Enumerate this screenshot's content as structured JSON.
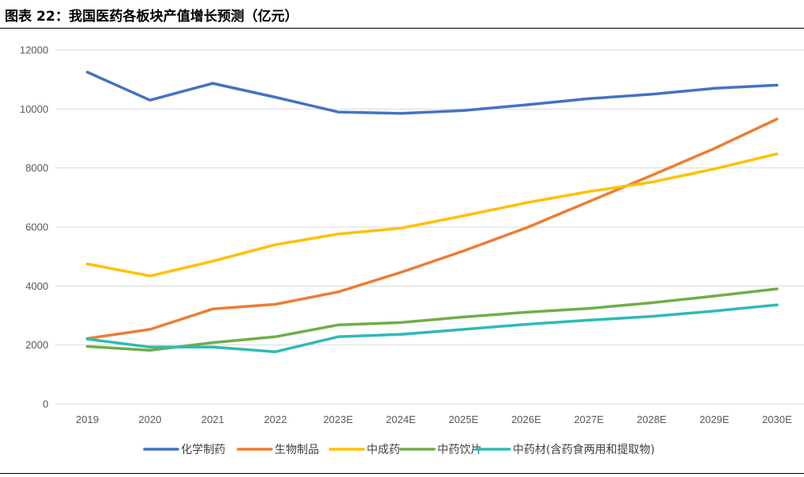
{
  "title": "图表 22：我国医药各板块产值增长预测（亿元）",
  "chart_data": {
    "type": "line",
    "title": "图表 22：我国医药各板块产值增长预测（亿元）",
    "xlabel": "",
    "ylabel": "",
    "categories": [
      "2019",
      "2020",
      "2021",
      "2022",
      "2023E",
      "2024E",
      "2025E",
      "2026E",
      "2027E",
      "2028E",
      "2029E",
      "2030E"
    ],
    "ylim": [
      0,
      12000
    ],
    "yticks": [
      0,
      2000,
      4000,
      6000,
      8000,
      10000,
      12000
    ],
    "grid": true,
    "legend_position": "bottom",
    "series": [
      {
        "name": "化学制药",
        "color": "#4472C4",
        "values": [
          11250,
          10300,
          10870,
          10400,
          9900,
          9850,
          9950,
          10140,
          10350,
          10500,
          10700,
          10810
        ]
      },
      {
        "name": "生物制品",
        "color": "#ED7D31",
        "values": [
          2220,
          2530,
          3220,
          3380,
          3800,
          4460,
          5190,
          5970,
          6860,
          7750,
          8660,
          9660
        ]
      },
      {
        "name": "中成药",
        "color": "#FFC000",
        "values": [
          4750,
          4340,
          4840,
          5400,
          5760,
          5960,
          6380,
          6820,
          7200,
          7520,
          7970,
          8480
        ]
      },
      {
        "name": "中药饮片",
        "color": "#70AD47",
        "values": [
          1950,
          1820,
          2080,
          2280,
          2680,
          2760,
          2950,
          3110,
          3240,
          3430,
          3660,
          3900
        ]
      },
      {
        "name": "中药材(含药食两用和提取物)",
        "color": "#2EBAB5",
        "values": [
          2200,
          1930,
          1930,
          1770,
          2280,
          2360,
          2530,
          2700,
          2840,
          2970,
          3150,
          3360
        ]
      }
    ]
  }
}
